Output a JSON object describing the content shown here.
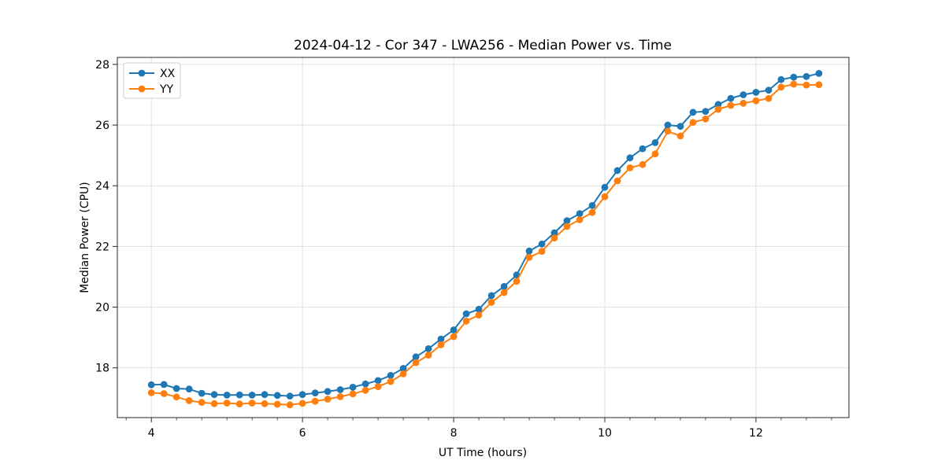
{
  "window": {
    "background": "#ffffff"
  },
  "chart_data": {
    "type": "line",
    "title": "2024-04-12 - Cor 347 - LWA256 - Median Power vs. Time",
    "xlabel": "UT Time (hours)",
    "ylabel": "Median Power (CPU)",
    "xlim": [
      3.55,
      13.23
    ],
    "ylim": [
      16.36,
      28.23
    ],
    "x_ticks": [
      4,
      6,
      8,
      10,
      12
    ],
    "x_minor_tick_step": 0.33333,
    "y_ticks": [
      18,
      20,
      22,
      24,
      26,
      28
    ],
    "grid": true,
    "grid_color": "#e0e0e0",
    "spine_color": "#262626",
    "legend_position": "upper-left",
    "marker": "circle",
    "x": [
      4,
      4.167,
      4.333,
      4.5,
      4.667,
      4.833,
      5,
      5.167,
      5.333,
      5.5,
      5.667,
      5.833,
      6,
      6.167,
      6.333,
      6.5,
      6.667,
      6.833,
      7,
      7.167,
      7.333,
      7.5,
      7.667,
      7.833,
      8,
      8.167,
      8.333,
      8.5,
      8.667,
      8.833,
      9,
      9.167,
      9.333,
      9.5,
      9.667,
      9.833,
      10,
      10.167,
      10.333,
      10.5,
      10.667,
      10.833,
      11,
      11.167,
      11.333,
      11.5,
      11.667,
      11.833,
      12,
      12.167,
      12.333,
      12.5,
      12.667,
      12.833
    ],
    "series": [
      {
        "name": "XX",
        "color": "#1f77b4",
        "values": [
          17.44,
          17.45,
          17.32,
          17.3,
          17.16,
          17.12,
          17.1,
          17.11,
          17.1,
          17.12,
          17.09,
          17.07,
          17.12,
          17.17,
          17.22,
          17.28,
          17.36,
          17.47,
          17.58,
          17.75,
          17.98,
          18.36,
          18.63,
          18.95,
          19.25,
          19.78,
          19.93,
          20.38,
          20.68,
          21.06,
          21.85,
          22.08,
          22.45,
          22.85,
          23.08,
          23.35,
          23.95,
          24.5,
          24.92,
          25.22,
          25.42,
          26.0,
          25.96,
          26.42,
          26.45,
          26.68,
          26.88,
          27.0,
          27.08,
          27.15,
          27.5,
          27.58,
          27.6,
          27.7
        ]
      },
      {
        "name": "YY",
        "color": "#ff7f0e",
        "values": [
          17.18,
          17.15,
          17.04,
          16.92,
          16.86,
          16.82,
          16.84,
          16.81,
          16.84,
          16.82,
          16.8,
          16.78,
          16.83,
          16.9,
          16.97,
          17.05,
          17.14,
          17.26,
          17.38,
          17.55,
          17.8,
          18.17,
          18.42,
          18.76,
          19.03,
          19.54,
          19.74,
          20.16,
          20.48,
          20.85,
          21.64,
          21.84,
          22.28,
          22.66,
          22.88,
          23.12,
          23.64,
          24.16,
          24.59,
          24.7,
          25.05,
          25.8,
          25.64,
          26.09,
          26.2,
          26.52,
          26.65,
          26.72,
          26.8,
          26.88,
          27.25,
          27.35,
          27.32,
          27.33
        ]
      }
    ]
  }
}
